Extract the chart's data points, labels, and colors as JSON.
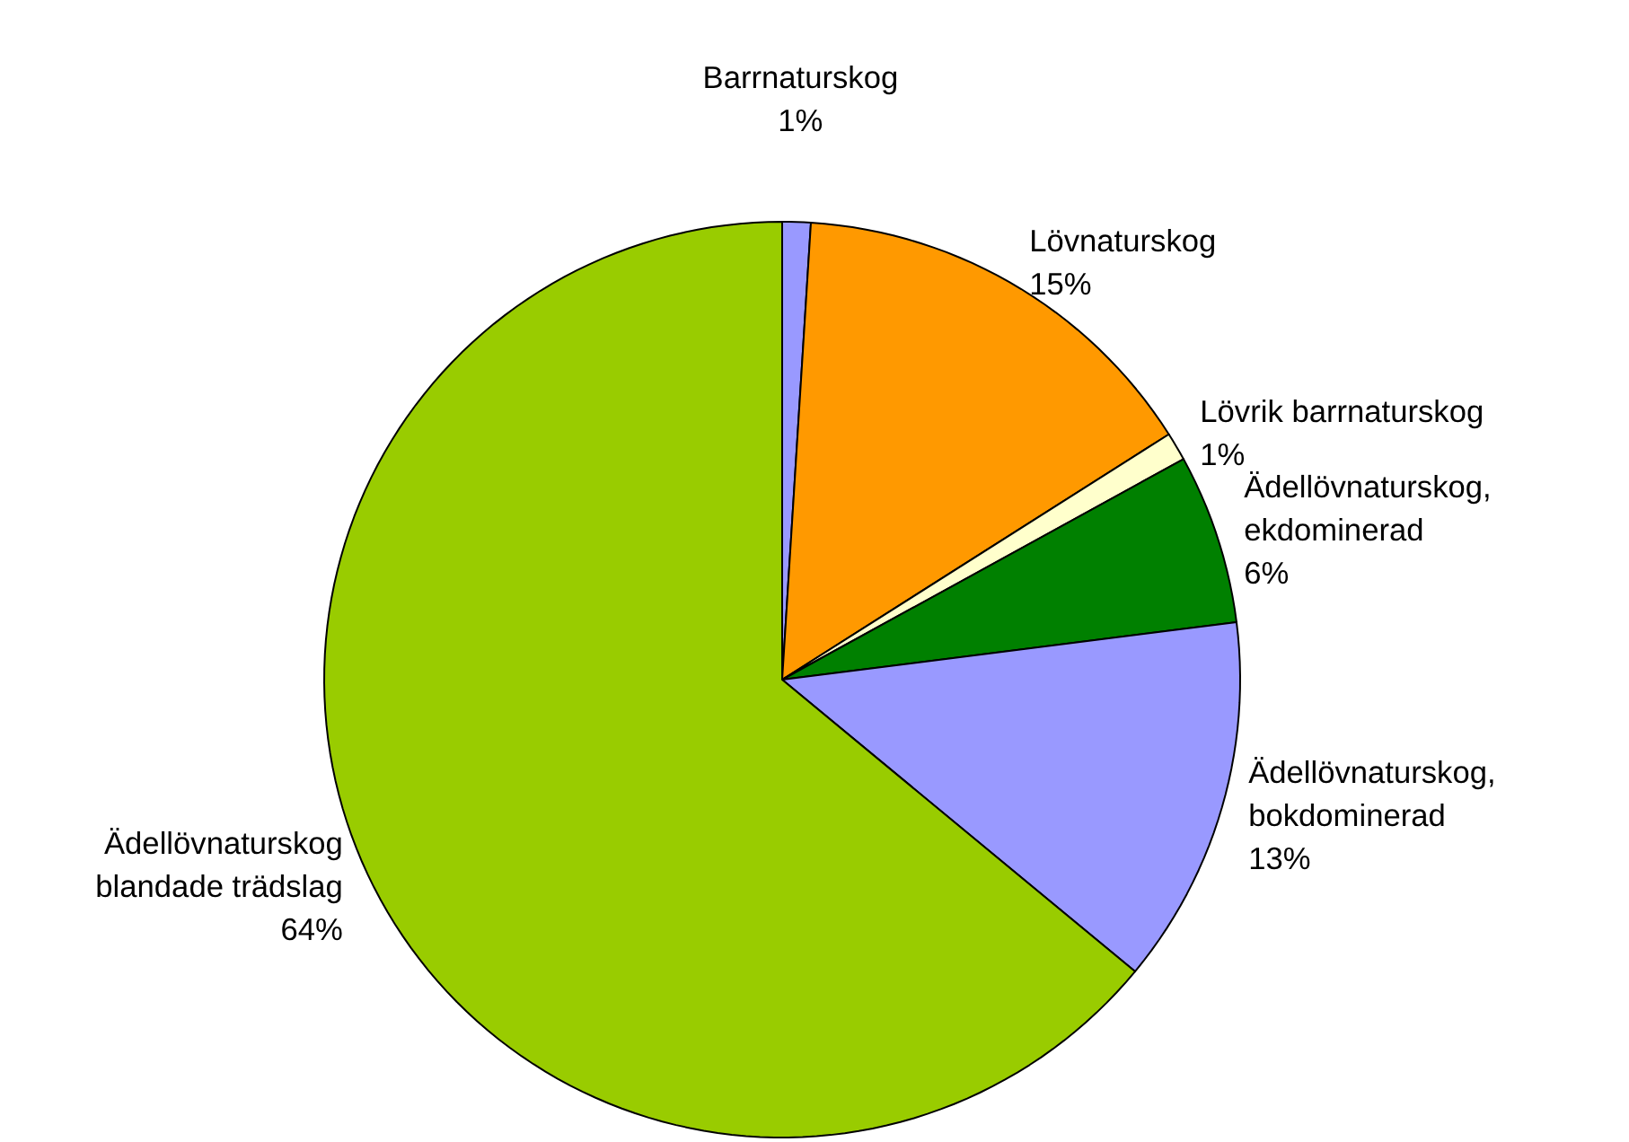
{
  "chart_data": {
    "type": "pie",
    "categories": [
      "Barrnaturskog",
      "Lövnaturskog",
      "Lövrik barrnaturskog",
      "Ädellövnaturskog,\nekdominerad",
      "Ädellövnaturskog,\nbokdominerad",
      "Ädellövnaturskog\nblandade trädslag"
    ],
    "values": [
      1,
      15,
      1,
      6,
      13,
      64
    ],
    "value_labels": [
      "1%",
      "15%",
      "1%",
      "6%",
      "13%",
      "64%"
    ],
    "colors": [
      "#9999ff",
      "#ff9900",
      "#ffffcc",
      "#008000",
      "#9999ff",
      "#99cc00"
    ]
  }
}
